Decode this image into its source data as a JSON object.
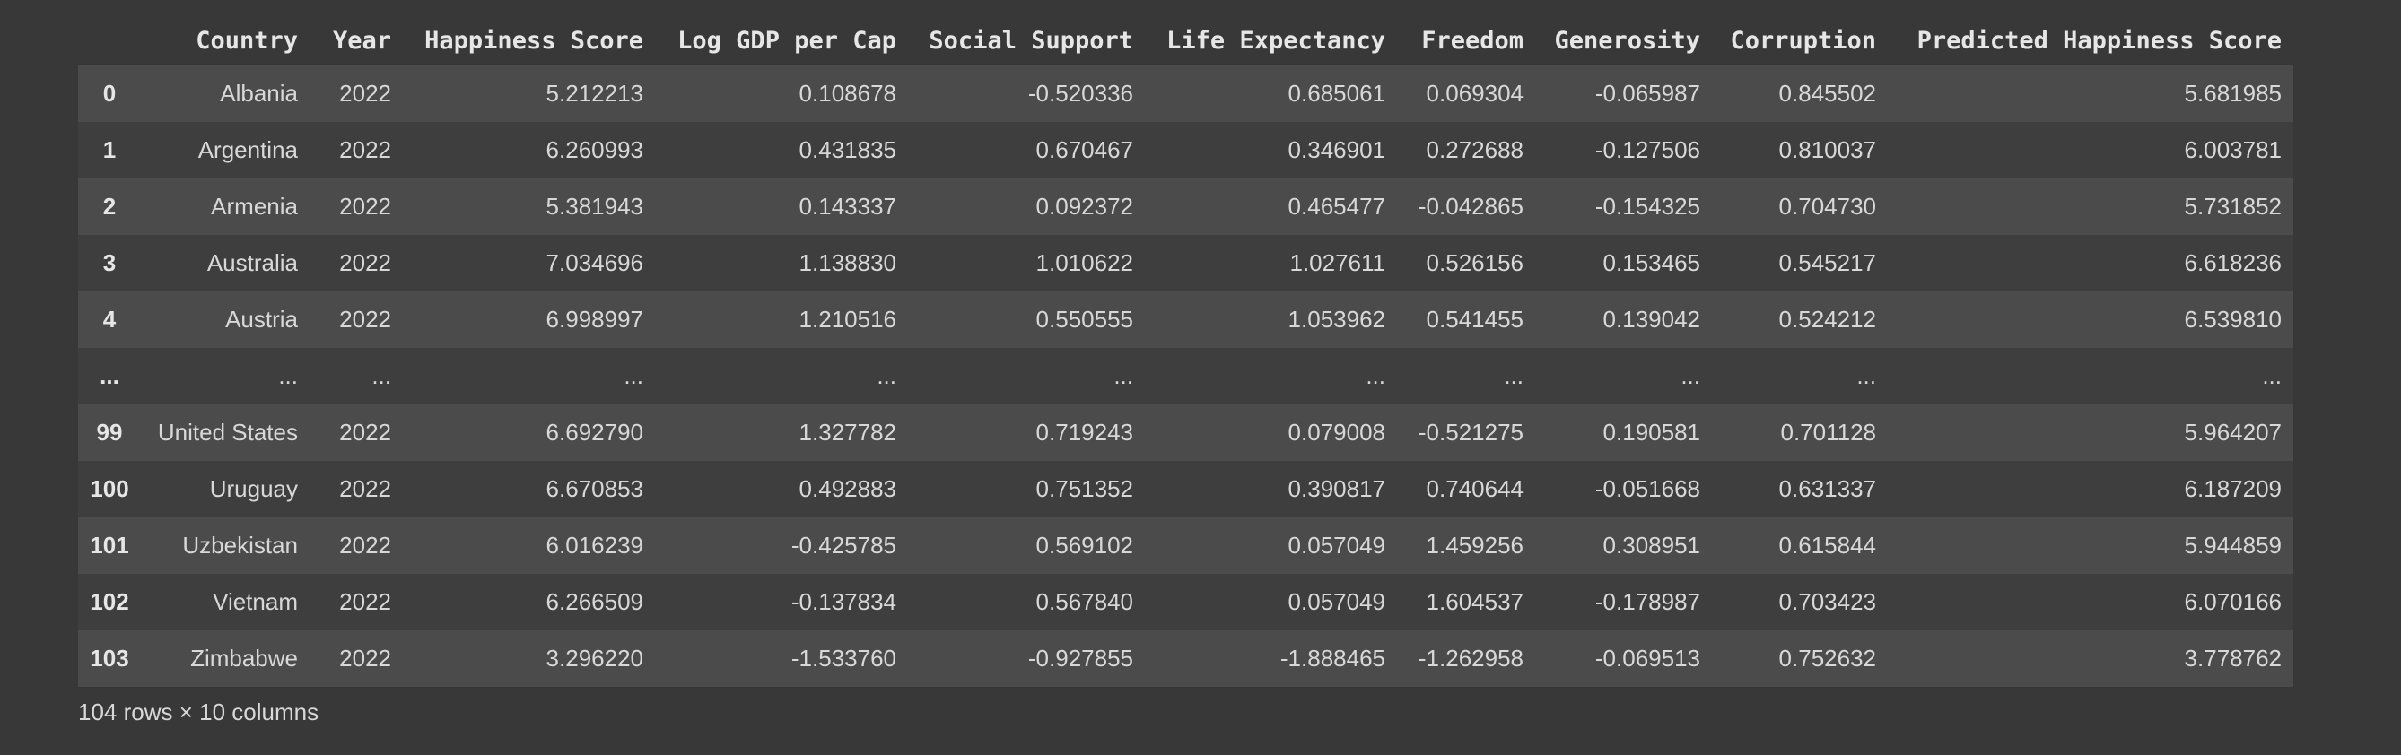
{
  "table": {
    "columns": [
      "Country",
      "Year",
      "Happiness Score",
      "Log GDP per Cap",
      "Social Support",
      "Life Expectancy",
      "Freedom",
      "Generosity",
      "Corruption",
      "Predicted Happiness Score"
    ],
    "rows": [
      {
        "index": "0",
        "cells": [
          "Albania",
          "2022",
          "5.212213",
          "0.108678",
          "-0.520336",
          "0.685061",
          "0.069304",
          "-0.065987",
          "0.845502",
          "5.681985"
        ]
      },
      {
        "index": "1",
        "cells": [
          "Argentina",
          "2022",
          "6.260993",
          "0.431835",
          "0.670467",
          "0.346901",
          "0.272688",
          "-0.127506",
          "0.810037",
          "6.003781"
        ]
      },
      {
        "index": "2",
        "cells": [
          "Armenia",
          "2022",
          "5.381943",
          "0.143337",
          "0.092372",
          "0.465477",
          "-0.042865",
          "-0.154325",
          "0.704730",
          "5.731852"
        ]
      },
      {
        "index": "3",
        "cells": [
          "Australia",
          "2022",
          "7.034696",
          "1.138830",
          "1.010622",
          "1.027611",
          "0.526156",
          "0.153465",
          "0.545217",
          "6.618236"
        ]
      },
      {
        "index": "4",
        "cells": [
          "Austria",
          "2022",
          "6.998997",
          "1.210516",
          "0.550555",
          "1.053962",
          "0.541455",
          "0.139042",
          "0.524212",
          "6.539810"
        ]
      },
      {
        "index": "...",
        "cells": [
          "...",
          "...",
          "...",
          "...",
          "...",
          "...",
          "...",
          "...",
          "...",
          "..."
        ]
      },
      {
        "index": "99",
        "cells": [
          "United States",
          "2022",
          "6.692790",
          "1.327782",
          "0.719243",
          "0.079008",
          "-0.521275",
          "0.190581",
          "0.701128",
          "5.964207"
        ]
      },
      {
        "index": "100",
        "cells": [
          "Uruguay",
          "2022",
          "6.670853",
          "0.492883",
          "0.751352",
          "0.390817",
          "0.740644",
          "-0.051668",
          "0.631337",
          "6.187209"
        ]
      },
      {
        "index": "101",
        "cells": [
          "Uzbekistan",
          "2022",
          "6.016239",
          "-0.425785",
          "0.569102",
          "0.057049",
          "1.459256",
          "0.308951",
          "0.615844",
          "5.944859"
        ]
      },
      {
        "index": "102",
        "cells": [
          "Vietnam",
          "2022",
          "6.266509",
          "-0.137834",
          "0.567840",
          "0.057049",
          "1.604537",
          "-0.178987",
          "0.703423",
          "6.070166"
        ]
      },
      {
        "index": "103",
        "cells": [
          "Zimbabwe",
          "2022",
          "3.296220",
          "-1.533760",
          "-0.927855",
          "-1.888465",
          "-1.262958",
          "-0.069513",
          "0.752632",
          "3.778762"
        ]
      }
    ]
  },
  "summary": "104 rows × 10 columns"
}
